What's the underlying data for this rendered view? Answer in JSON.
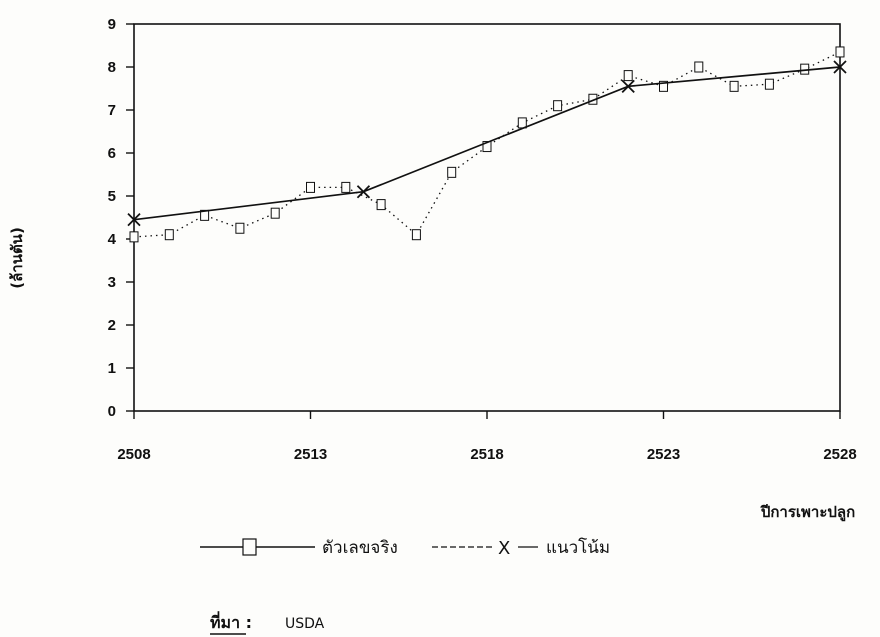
{
  "chart_data": {
    "type": "line",
    "title": "",
    "xlabel": "ปีการเพาะปลูก",
    "ylabel": "(ล้านตัน)",
    "xlim": [
      2508,
      2528
    ],
    "ylim": [
      0,
      9
    ],
    "x_ticks": [
      "2508",
      "2513",
      "2518",
      "2523",
      "2528"
    ],
    "y_ticks": [
      "0",
      "1",
      "2",
      "3",
      "4",
      "5",
      "6",
      "7",
      "8",
      "9"
    ],
    "grid": false,
    "legend_position": "bottom",
    "series": [
      {
        "name": "ตัวเลขจริง",
        "style": "dotted",
        "marker": "square",
        "x": [
          2508,
          2509,
          2510,
          2511,
          2512,
          2513,
          2514,
          2515,
          2516,
          2517,
          2518,
          2519,
          2520,
          2521,
          2522,
          2523,
          2524,
          2525,
          2526,
          2527,
          2528
        ],
        "y": [
          4.05,
          4.1,
          4.55,
          4.25,
          4.6,
          5.2,
          5.2,
          4.8,
          4.1,
          5.55,
          6.15,
          6.7,
          7.1,
          7.25,
          7.8,
          7.55,
          8.0,
          7.55,
          7.6,
          7.95,
          8.35
        ]
      },
      {
        "name": "แนวโน้ม",
        "style": "solid",
        "marker": "x",
        "x": [
          2508,
          2514.5,
          2522,
          2528
        ],
        "y": [
          4.45,
          5.1,
          7.55,
          8.0
        ]
      }
    ],
    "legend": {
      "actual_label": "ตัวเลขจริง",
      "trend_label": "แนวโน้ม"
    }
  },
  "source": {
    "label": "ที่มา :",
    "value": "USDA"
  }
}
